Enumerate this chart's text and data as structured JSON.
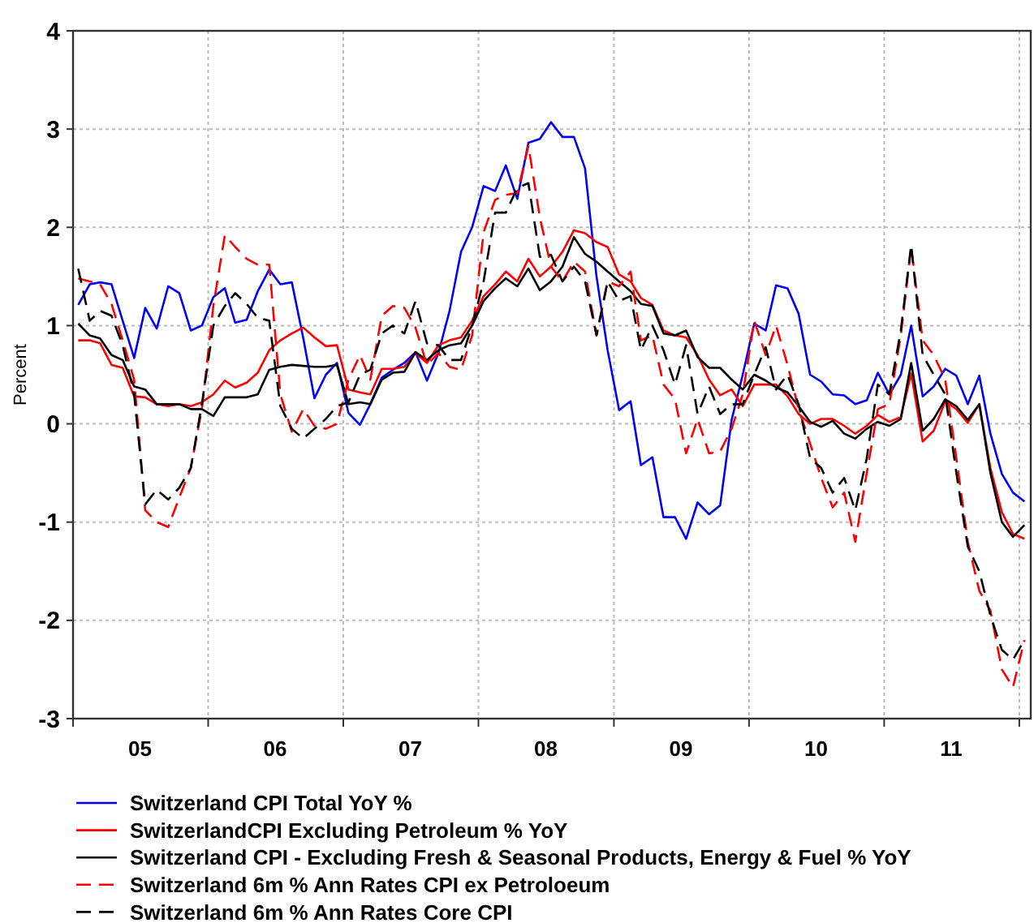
{
  "chart_data": {
    "type": "line",
    "ylabel": "Percent",
    "x": [
      "2005-01-15",
      "2005-02-15",
      "2005-03-15",
      "2005-04-15",
      "2005-05-15",
      "2005-06-15",
      "2005-07-15",
      "2005-08-15",
      "2005-09-15",
      "2005-10-15",
      "2005-11-15",
      "2005-12-15",
      "2006-01-15",
      "2006-02-15",
      "2006-03-15",
      "2006-04-15",
      "2006-05-15",
      "2006-06-15",
      "2006-07-15",
      "2006-08-15",
      "2006-09-15",
      "2006-10-15",
      "2006-11-15",
      "2006-12-15",
      "2007-01-15",
      "2007-02-15",
      "2007-03-15",
      "2007-04-15",
      "2007-05-15",
      "2007-06-15",
      "2007-07-15",
      "2007-08-15",
      "2007-09-15",
      "2007-10-15",
      "2007-11-15",
      "2007-12-15",
      "2008-01-15",
      "2008-02-15",
      "2008-03-15",
      "2008-04-15",
      "2008-05-15",
      "2008-06-15",
      "2008-07-15",
      "2008-08-15",
      "2008-09-15",
      "2008-10-15",
      "2008-11-15",
      "2008-12-15",
      "2009-01-15",
      "2009-02-15",
      "2009-03-15",
      "2009-04-15",
      "2009-05-15",
      "2009-06-15",
      "2009-07-15",
      "2009-08-15",
      "2009-09-15",
      "2009-10-15",
      "2009-11-15",
      "2009-12-15",
      "2010-01-15",
      "2010-02-15",
      "2010-03-15",
      "2010-04-15",
      "2010-05-15",
      "2010-06-15",
      "2010-07-15",
      "2010-08-15",
      "2010-09-15",
      "2010-10-15",
      "2010-11-15",
      "2010-12-15",
      "2011-01-15",
      "2011-02-15",
      "2011-03-15",
      "2011-04-15",
      "2011-05-15",
      "2011-06-15",
      "2011-07-15",
      "2011-08-15",
      "2011-09-15",
      "2011-10-15",
      "2011-11-15",
      "2011-12-15",
      "2012-01-15"
    ],
    "series": [
      {
        "name": "Switzerland CPI Total YoY %",
        "color": "#0000ff",
        "line_style": "solid",
        "values": [
          1.21,
          1.42,
          1.44,
          1.42,
          1.05,
          0.67,
          1.18,
          0.97,
          1.4,
          1.33,
          0.95,
          1.0,
          1.29,
          1.38,
          1.03,
          1.06,
          1.35,
          1.57,
          1.42,
          1.44,
          0.87,
          0.26,
          0.5,
          0.62,
          0.11,
          -0.01,
          0.2,
          0.47,
          0.55,
          0.62,
          0.73,
          0.44,
          0.72,
          1.15,
          1.75,
          2.0,
          2.42,
          2.37,
          2.63,
          2.29,
          2.86,
          2.9,
          3.07,
          2.92,
          2.92,
          2.6,
          1.5,
          0.75,
          0.14,
          0.23,
          -0.42,
          -0.34,
          -0.95,
          -0.95,
          -1.17,
          -0.8,
          -0.92,
          -0.83,
          0.04,
          0.5,
          1.02,
          0.95,
          1.41,
          1.38,
          1.12,
          0.5,
          0.43,
          0.3,
          0.29,
          0.2,
          0.24,
          0.52,
          0.3,
          0.5,
          1.0,
          0.28,
          0.38,
          0.56,
          0.49,
          0.2,
          0.49,
          -0.1,
          -0.51,
          -0.7,
          -0.79
        ]
      },
      {
        "name": "SwitzerlandCPI Excluding Petroleum % YoY",
        "color": "#ff0000",
        "line_style": "solid",
        "values": [
          0.85,
          0.85,
          0.82,
          0.6,
          0.57,
          0.28,
          0.27,
          0.2,
          0.18,
          0.2,
          0.18,
          0.22,
          0.3,
          0.44,
          0.37,
          0.42,
          0.52,
          0.75,
          0.85,
          0.92,
          0.98,
          0.88,
          0.79,
          0.8,
          0.35,
          0.32,
          0.3,
          0.56,
          0.56,
          0.58,
          0.72,
          0.62,
          0.8,
          0.85,
          0.88,
          1.05,
          1.3,
          1.42,
          1.55,
          1.45,
          1.68,
          1.5,
          1.6,
          1.75,
          1.97,
          1.94,
          1.85,
          1.8,
          1.52,
          1.45,
          1.28,
          1.21,
          0.95,
          0.9,
          0.88,
          0.7,
          0.45,
          0.29,
          0.35,
          0.18,
          0.4,
          0.4,
          0.4,
          0.28,
          0.1,
          0.0,
          0.05,
          0.05,
          -0.02,
          -0.1,
          -0.02,
          0.09,
          0.02,
          0.07,
          0.51,
          -0.18,
          -0.07,
          0.23,
          0.15,
          0.01,
          0.2,
          -0.45,
          -0.9,
          -1.12,
          -1.17
        ]
      },
      {
        "name": "Switzerland CPI - Excluding Fresh & Seasonal Products, Energy & Fuel % YoY",
        "color": "#000000",
        "line_style": "solid",
        "values": [
          1.02,
          0.9,
          0.87,
          0.7,
          0.65,
          0.38,
          0.35,
          0.2,
          0.2,
          0.2,
          0.15,
          0.15,
          0.08,
          0.27,
          0.27,
          0.27,
          0.3,
          0.55,
          0.58,
          0.6,
          0.59,
          0.58,
          0.58,
          0.6,
          0.2,
          0.22,
          0.2,
          0.45,
          0.52,
          0.53,
          0.73,
          0.65,
          0.75,
          0.8,
          0.82,
          1.0,
          1.25,
          1.38,
          1.48,
          1.4,
          1.58,
          1.36,
          1.45,
          1.6,
          1.9,
          1.73,
          1.65,
          1.55,
          1.45,
          1.35,
          1.22,
          1.2,
          0.92,
          0.9,
          0.95,
          0.68,
          0.57,
          0.57,
          0.45,
          0.35,
          0.5,
          0.44,
          0.37,
          0.32,
          0.18,
          0.02,
          -0.03,
          0.03,
          -0.1,
          -0.15,
          -0.05,
          0.02,
          -0.02,
          0.05,
          0.62,
          -0.07,
          0.05,
          0.25,
          0.18,
          0.04,
          0.2,
          -0.5,
          -1.0,
          -1.15,
          -1.03
        ]
      },
      {
        "name": "Switzerland 6m % Ann Rates CPI ex Petroloeum",
        "color": "#ff0000",
        "line_style": "dashed",
        "values": [
          1.48,
          1.45,
          1.42,
          1.22,
          0.85,
          0.45,
          -0.88,
          -1.0,
          -1.05,
          -0.75,
          -0.45,
          0.15,
          1.2,
          1.92,
          1.8,
          1.68,
          1.62,
          1.62,
          0.3,
          -0.08,
          0.15,
          -0.02,
          -0.05,
          0.0,
          0.45,
          0.7,
          0.45,
          1.1,
          1.2,
          1.18,
          0.98,
          0.6,
          0.72,
          0.58,
          0.55,
          0.9,
          1.95,
          2.28,
          2.33,
          2.35,
          2.83,
          2.1,
          1.6,
          1.45,
          1.65,
          1.55,
          0.9,
          1.45,
          1.4,
          1.55,
          0.85,
          0.9,
          0.4,
          0.25,
          -0.3,
          0.05,
          -0.3,
          -0.28,
          -0.05,
          0.3,
          1.05,
          0.7,
          1.0,
          0.6,
          0.15,
          -0.2,
          -0.55,
          -0.85,
          -0.7,
          -1.2,
          -0.5,
          0.15,
          0.2,
          0.9,
          1.8,
          0.85,
          0.7,
          0.45,
          -0.35,
          -1.2,
          -1.7,
          -1.9,
          -2.5,
          -2.68,
          -2.2
        ]
      },
      {
        "name": "Switzerland 6m % Ann Rates Core CPI",
        "color": "#000000",
        "line_style": "dashed",
        "values": [
          1.58,
          1.05,
          1.15,
          1.1,
          0.8,
          0.3,
          -0.82,
          -0.67,
          -0.77,
          -0.65,
          -0.45,
          0.2,
          1.0,
          1.2,
          1.33,
          1.22,
          1.08,
          1.05,
          0.18,
          -0.05,
          -0.15,
          -0.05,
          0.05,
          0.18,
          0.22,
          0.5,
          0.55,
          0.92,
          1.0,
          0.92,
          1.25,
          0.82,
          0.8,
          0.65,
          0.65,
          1.0,
          1.45,
          2.15,
          2.15,
          2.4,
          2.45,
          1.7,
          1.72,
          1.45,
          1.6,
          1.45,
          0.9,
          1.45,
          1.25,
          1.3,
          0.75,
          1.0,
          0.75,
          0.4,
          0.8,
          0.1,
          0.38,
          0.1,
          0.2,
          0.2,
          0.5,
          0.78,
          0.35,
          0.5,
          0.2,
          -0.35,
          -0.45,
          -0.7,
          -0.55,
          -0.88,
          -0.35,
          0.4,
          0.3,
          0.95,
          1.82,
          0.7,
          0.5,
          0.3,
          -0.5,
          -1.25,
          -1.5,
          -1.95,
          -2.3,
          -2.4,
          -2.2
        ]
      }
    ],
    "xlim": [
      "2005-01-01",
      "2012-02-01"
    ],
    "xticks": [
      {
        "value": "2005-01-01",
        "label": null
      },
      {
        "value": "2005-07-01",
        "label": "05"
      },
      {
        "value": "2006-01-01",
        "label": null
      },
      {
        "value": "2006-07-01",
        "label": "06"
      },
      {
        "value": "2007-01-01",
        "label": null
      },
      {
        "value": "2007-07-01",
        "label": "07"
      },
      {
        "value": "2008-01-01",
        "label": null
      },
      {
        "value": "2008-07-01",
        "label": "08"
      },
      {
        "value": "2009-01-01",
        "label": null
      },
      {
        "value": "2009-07-01",
        "label": "09"
      },
      {
        "value": "2010-01-01",
        "label": null
      },
      {
        "value": "2010-07-01",
        "label": "10"
      },
      {
        "value": "2011-01-01",
        "label": null
      },
      {
        "value": "2011-07-01",
        "label": "11"
      },
      {
        "value": "2012-01-01",
        "label": null
      }
    ],
    "ylim": [
      -3,
      4
    ],
    "yticks": [
      -3,
      -2,
      -1,
      0,
      1,
      2,
      3,
      4
    ],
    "grid": true,
    "legend": "bottom",
    "marker": "none"
  }
}
